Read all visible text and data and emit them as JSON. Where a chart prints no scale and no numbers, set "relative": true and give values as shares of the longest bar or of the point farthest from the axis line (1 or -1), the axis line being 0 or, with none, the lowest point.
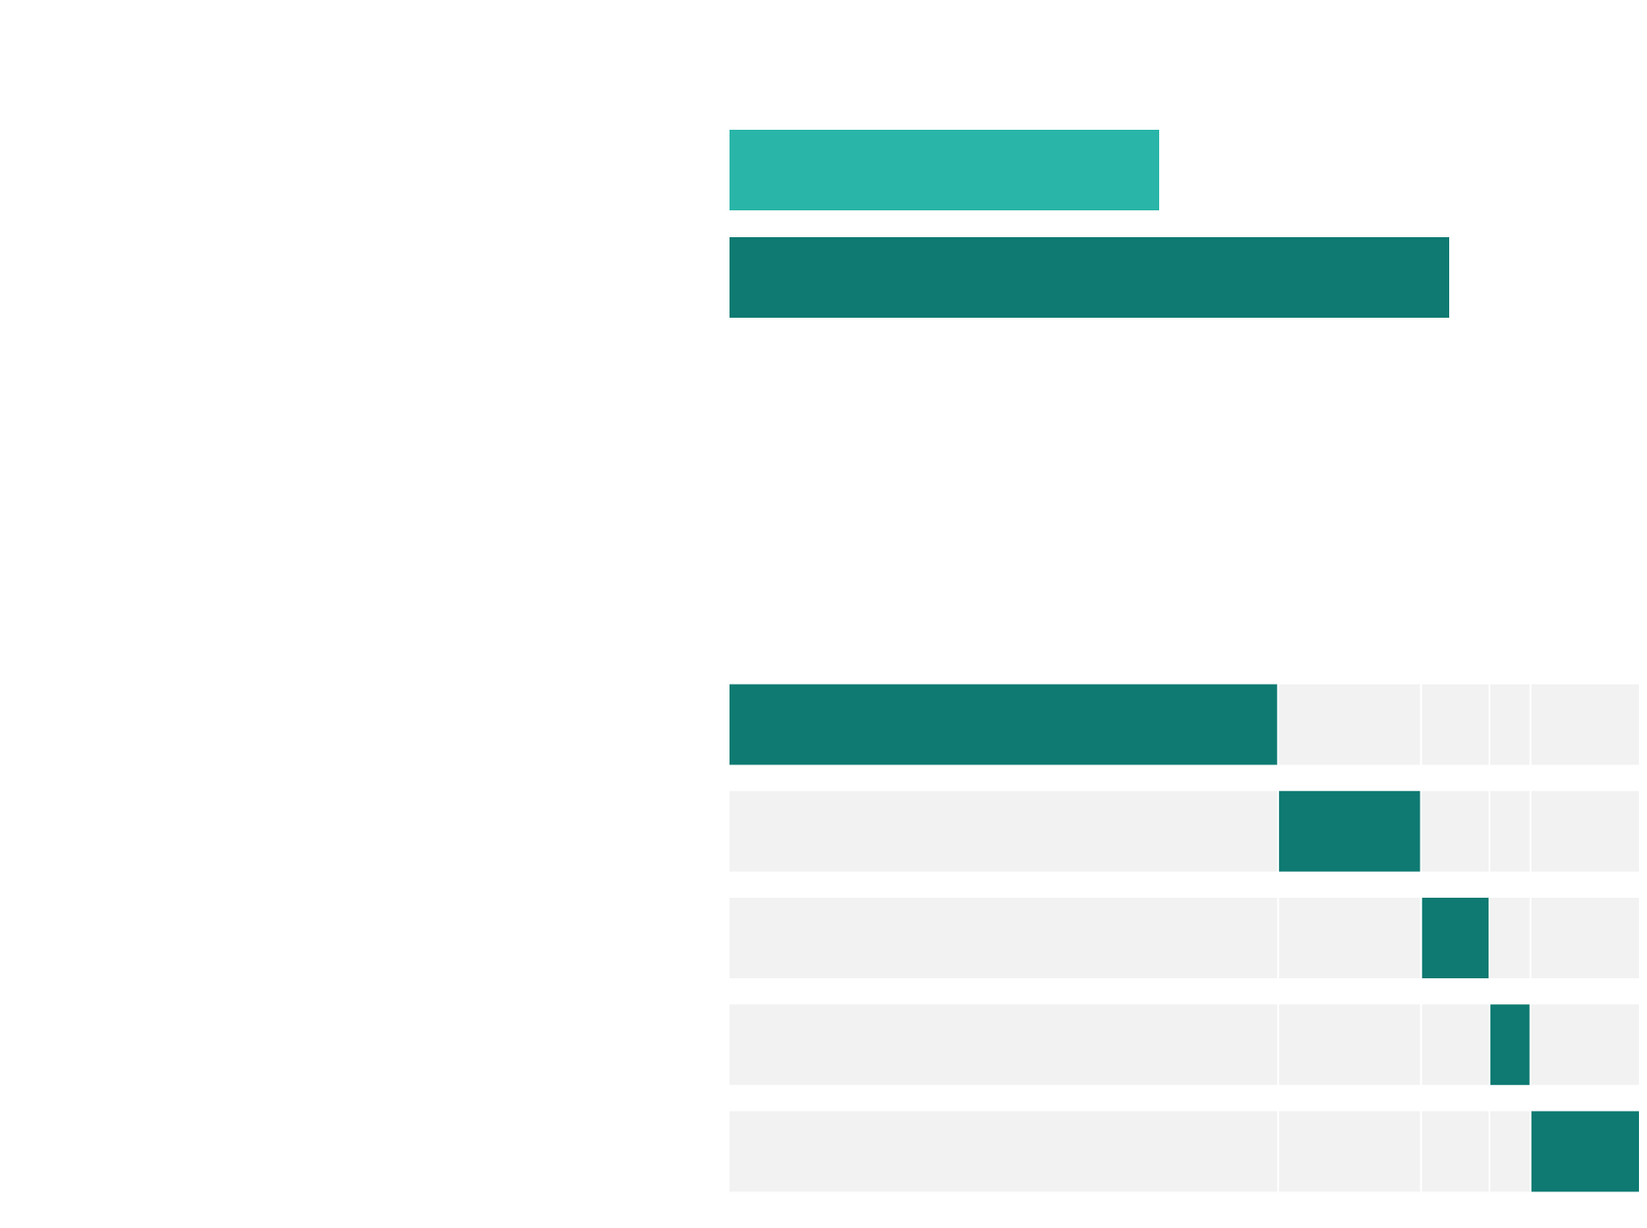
{
  "chart_data": [
    {
      "type": "bar",
      "orientation": "horizontal",
      "relative": true,
      "categories": [
        null,
        null
      ],
      "series": [
        {
          "values": [
            0.598,
            1
          ],
          "colors": [
            "#29b5a8",
            "#0e7a72"
          ]
        }
      ]
    },
    {
      "type": "bar",
      "orientation": "horizontal",
      "relative": true,
      "stacked": true,
      "categories": [
        null,
        null,
        null,
        null,
        null
      ],
      "series": [
        {
          "values": [
            0.603,
            0.603,
            0.603,
            0.603,
            0.603
          ],
          "colors": [
            "#0e7a72",
            "#f2f2f2",
            "#f2f2f2",
            "#f2f2f2",
            "#f2f2f2"
          ]
        },
        {
          "values": [
            0.157,
            0.157,
            0.157,
            0.157,
            0.157
          ],
          "colors": [
            "#f2f2f2",
            "#0e7a72",
            "#f2f2f2",
            "#f2f2f2",
            "#f2f2f2"
          ]
        },
        {
          "values": [
            0.075,
            0.075,
            0.075,
            0.075,
            0.075
          ],
          "colors": [
            "#f2f2f2",
            "#f2f2f2",
            "#0e7a72",
            "#f2f2f2",
            "#f2f2f2"
          ]
        },
        {
          "values": [
            0.045,
            0.045,
            0.045,
            0.045,
            0.045
          ],
          "colors": [
            "#f2f2f2",
            "#f2f2f2",
            "#f2f2f2",
            "#0e7a72",
            "#f2f2f2"
          ]
        },
        {
          "values": [
            0.12,
            0.12,
            0.12,
            0.12,
            0.12
          ],
          "colors": [
            "#f2f2f2",
            "#f2f2f2",
            "#f2f2f2",
            "#f2f2f2",
            "#0e7a72"
          ]
        }
      ]
    }
  ]
}
